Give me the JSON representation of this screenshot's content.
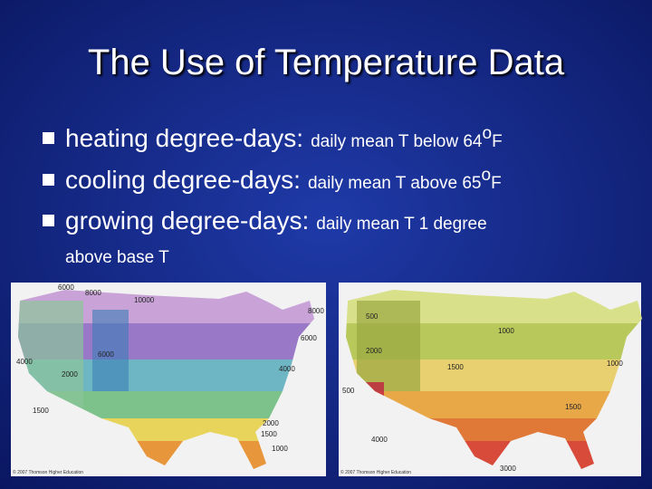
{
  "title": "The Use of Temperature Data",
  "bullets": [
    {
      "term": "heating degree-days:",
      "description": "daily mean T below 64",
      "superscript": "o",
      "unit": "F"
    },
    {
      "term": "cooling degree-days:",
      "description": "daily mean T above 65",
      "superscript": "o",
      "unit": "F"
    },
    {
      "term": "growing degree-days:",
      "description": "daily mean T 1 degree",
      "continuation": "above base T"
    }
  ],
  "maps": [
    {
      "labels": [
        "6000",
        "8000",
        "10000",
        "8000",
        "6000",
        "4000",
        "6000",
        "2000",
        "4000",
        "1500",
        "2000",
        "1500",
        "1000"
      ],
      "credit": "© 2007 Thomson Higher Education"
    },
    {
      "labels": [
        "500",
        "1000",
        "2000",
        "1500",
        "1000",
        "500",
        "4000",
        "3000",
        "1500"
      ],
      "credit": "© 2007 Thomson Higher Education"
    }
  ]
}
